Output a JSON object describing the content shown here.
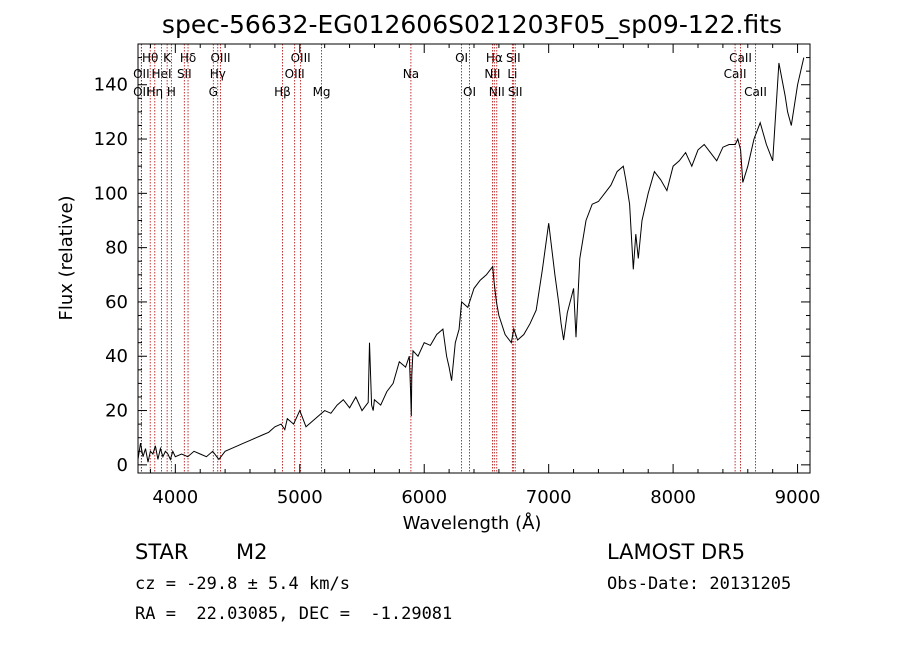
{
  "chart_data": {
    "type": "line",
    "title": "spec-56632-EG012606S021203F05_sp09-122.fits",
    "xlabel": "Wavelength (Å)",
    "ylabel": "Flux (relative)",
    "xlim": [
      3700,
      9100
    ],
    "ylim": [
      -3,
      155
    ],
    "xticks": [
      4000,
      5000,
      6000,
      7000,
      8000,
      9000
    ],
    "yticks": [
      0,
      20,
      40,
      60,
      80,
      100,
      120,
      140
    ],
    "grid": false,
    "series": [
      {
        "x": [
          3700,
          3720,
          3740,
          3760,
          3780,
          3800,
          3820,
          3840,
          3860,
          3880,
          3900,
          3920,
          3940,
          3960,
          3980,
          4000,
          4050,
          4100,
          4150,
          4200,
          4250,
          4300,
          4350,
          4400,
          4450,
          4500,
          4550,
          4600,
          4650,
          4700,
          4750,
          4800,
          4850,
          4880,
          4900,
          4950,
          5000,
          5050,
          5100,
          5150,
          5200,
          5250,
          5300,
          5350,
          5400,
          5450,
          5500,
          5550,
          5560,
          5577,
          5590,
          5600,
          5650,
          5700,
          5750,
          5800,
          5850,
          5880,
          5890,
          5896,
          5900,
          5910,
          5950,
          6000,
          6050,
          6100,
          6150,
          6180,
          6200,
          6220,
          6250,
          6280,
          6300,
          6350,
          6400,
          6450,
          6500,
          6550,
          6560,
          6580,
          6600,
          6650,
          6700,
          6720,
          6750,
          6800,
          6850,
          6900,
          6950,
          7000,
          7050,
          7080,
          7100,
          7120,
          7150,
          7200,
          7220,
          7250,
          7300,
          7350,
          7400,
          7450,
          7500,
          7550,
          7600,
          7620,
          7650,
          7680,
          7700,
          7720,
          7750,
          7800,
          7850,
          7900,
          7950,
          8000,
          8050,
          8100,
          8150,
          8200,
          8250,
          8300,
          8350,
          8400,
          8450,
          8500,
          8520,
          8542,
          8560,
          8600,
          8650,
          8700,
          8750,
          8800,
          8850,
          8900,
          8920,
          8950,
          9000,
          9050
        ],
        "values": [
          2,
          8,
          3,
          6,
          1,
          5,
          4,
          7,
          2,
          6,
          3,
          5,
          4,
          2,
          5,
          3,
          4,
          3,
          5,
          4,
          3,
          5,
          2,
          5,
          6,
          7,
          8,
          9,
          10,
          11,
          12,
          14,
          15,
          13,
          17,
          15,
          20,
          14,
          16,
          18,
          20,
          19,
          22,
          24,
          21,
          25,
          20,
          23,
          45,
          22,
          20,
          24,
          22,
          27,
          30,
          38,
          36,
          40,
          28,
          18,
          33,
          42,
          40,
          45,
          44,
          48,
          50,
          40,
          36,
          31,
          45,
          50,
          60,
          58,
          65,
          68,
          70,
          73,
          68,
          60,
          55,
          48,
          45,
          50,
          46,
          48,
          52,
          57,
          72,
          89,
          70,
          60,
          52,
          46,
          56,
          65,
          47,
          76,
          90,
          96,
          97,
          100,
          103,
          108,
          110,
          105,
          96,
          72,
          85,
          76,
          90,
          100,
          108,
          105,
          101,
          110,
          112,
          115,
          110,
          116,
          118,
          115,
          112,
          117,
          118,
          118,
          120,
          116,
          104,
          110,
          120,
          126,
          118,
          112,
          148,
          136,
          130,
          125,
          140,
          150
        ]
      }
    ],
    "lines": [
      {
        "label": "Hθ",
        "wl": 3798,
        "row": 1
      },
      {
        "label": "OII",
        "wl": 3727,
        "row": 2
      },
      {
        "label": "OII",
        "wl": 3727,
        "row": 3
      },
      {
        "label": "K",
        "wl": 3934,
        "row": 1
      },
      {
        "label": "HeI",
        "wl": 3889,
        "row": 2
      },
      {
        "label": "Hη",
        "wl": 3835,
        "row": 3
      },
      {
        "label": "H",
        "wl": 3968,
        "row": 3
      },
      {
        "label": "Hδ",
        "wl": 4102,
        "row": 1
      },
      {
        "label": "SII",
        "wl": 4072,
        "row": 2
      },
      {
        "label": "OIII",
        "wl": 4363,
        "row": 1
      },
      {
        "label": "Hγ",
        "wl": 4341,
        "row": 2
      },
      {
        "label": "G",
        "wl": 4305,
        "row": 3
      },
      {
        "label": "OIII",
        "wl": 5007,
        "row": 1
      },
      {
        "label": "OIII",
        "wl": 4959,
        "row": 2
      },
      {
        "label": "Hβ",
        "wl": 4861,
        "row": 3
      },
      {
        "label": "Mg",
        "wl": 5175,
        "row": 3
      },
      {
        "label": "Na",
        "wl": 5893,
        "row": 2
      },
      {
        "label": "OI",
        "wl": 6300,
        "row": 1
      },
      {
        "label": "OI",
        "wl": 6364,
        "row": 3
      },
      {
        "label": "Hα",
        "wl": 6563,
        "row": 1
      },
      {
        "label": "SII",
        "wl": 6716,
        "row": 1
      },
      {
        "label": "NII",
        "wl": 6548,
        "row": 2
      },
      {
        "label": "Li",
        "wl": 6708,
        "row": 2
      },
      {
        "label": "NII",
        "wl": 6583,
        "row": 3
      },
      {
        "label": "SII",
        "wl": 6731,
        "row": 3
      },
      {
        "label": "CaII",
        "wl": 8542,
        "row": 1
      },
      {
        "label": "CaII",
        "wl": 8498,
        "row": 2
      },
      {
        "label": "CaII",
        "wl": 8662,
        "row": 3
      }
    ],
    "line_color": "#b00000"
  },
  "info": {
    "object_class": "STAR",
    "subclass": "M2",
    "survey": "LAMOST DR5",
    "cz": "cz = -29.8 ± 5.4 km/s",
    "obs_date": "Obs-Date: 20131205",
    "coords": "RA =  22.03085, DEC =  -1.29081"
  }
}
